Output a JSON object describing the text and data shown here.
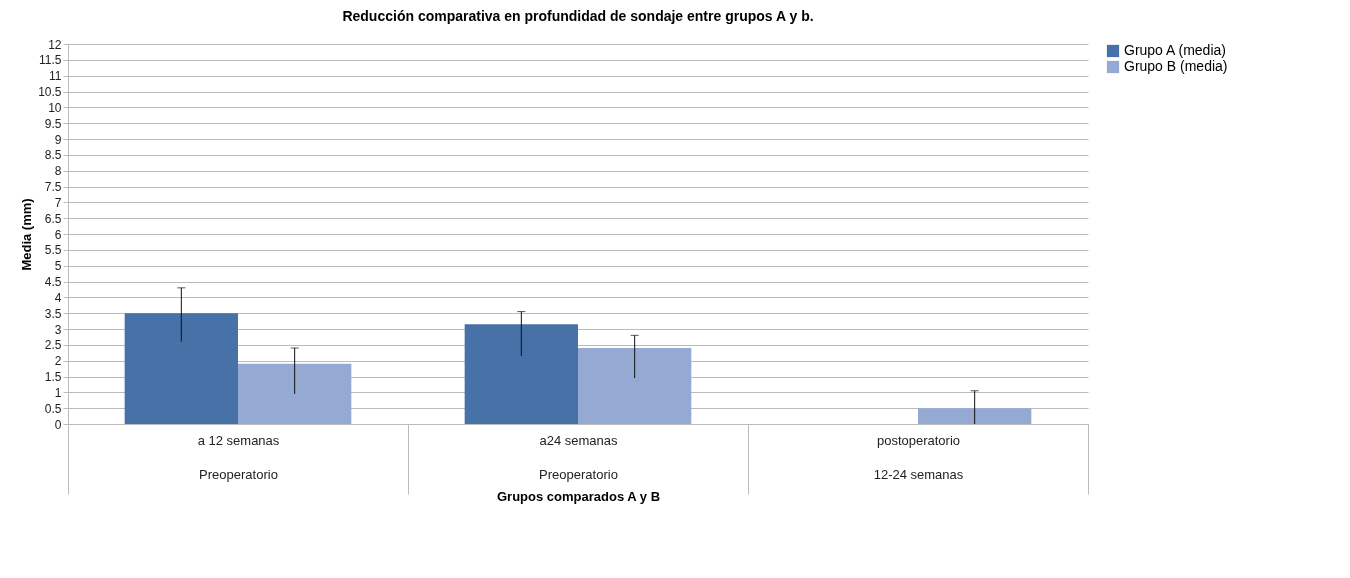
{
  "chart_data": {
    "type": "bar",
    "title": "Reducción comparativa en profundidad de sondaje entre grupos A y b.",
    "xlabel": "Grupos comparados A y B",
    "ylabel": "Media (mm)",
    "categories": [
      "a 12 semanas\nPreoperatorio",
      "a24 semanas\nPreoperatorio",
      "postoperatorio\n12-24 semanas"
    ],
    "series": [
      {
        "name": "Grupo A (media)",
        "color": "#4672a8",
        "values": [
          3.5,
          3.15,
          0
        ],
        "errors": [
          [
            2.6,
            4.3
          ],
          [
            2.15,
            3.55
          ],
          null
        ]
      },
      {
        "name": "Grupo B (media)",
        "color": "#94aad2",
        "values": [
          1.9,
          2.4,
          0.5
        ],
        "errors": [
          [
            0.95,
            2.4
          ],
          [
            1.45,
            2.8
          ],
          [
            0,
            1.05
          ]
        ]
      }
    ],
    "ylim": [
      0,
      12
    ],
    "yticks": [
      0,
      0.5,
      1,
      1.5,
      2,
      2.5,
      3,
      3.5,
      4,
      4.5,
      5,
      5.5,
      6,
      6.5,
      7,
      7.5,
      8,
      8.5,
      9,
      9.5,
      10,
      10.5,
      11,
      11.5,
      12
    ],
    "grid": "y",
    "legend": "right"
  }
}
